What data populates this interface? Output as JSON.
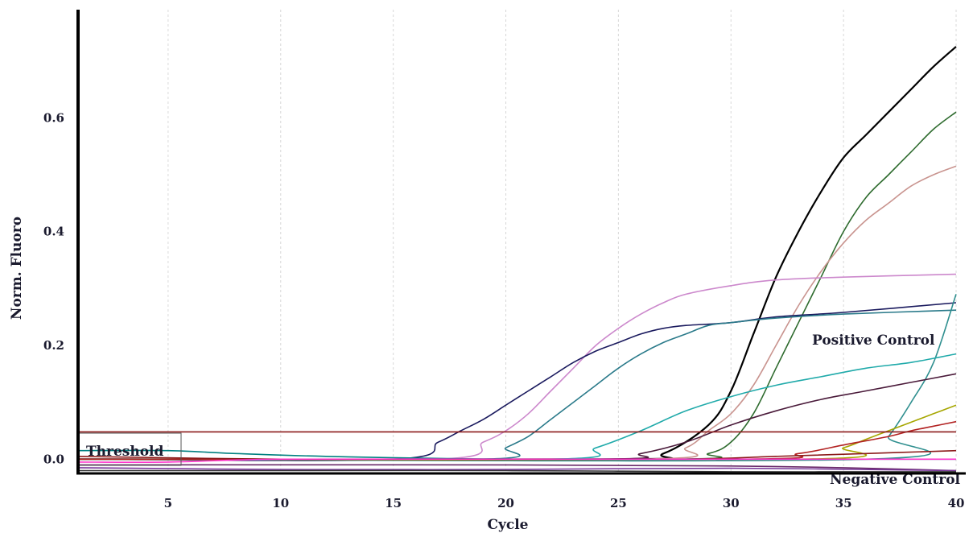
{
  "chart_data": {
    "type": "line",
    "xlabel": "Cycle",
    "ylabel": "Norm. Fluoro",
    "xlim": [
      1,
      40
    ],
    "ylim": [
      -0.025,
      0.79
    ],
    "x_ticks": [
      5,
      10,
      15,
      20,
      25,
      30,
      35,
      40
    ],
    "y_ticks": [
      0.0,
      0.2,
      0.4,
      0.6
    ],
    "x_tick_labels": [
      "5",
      "10",
      "15",
      "20",
      "25",
      "30",
      "35",
      "40"
    ],
    "y_tick_labels": [
      "0.0",
      "0.2",
      "0.4",
      "0.6"
    ],
    "grid": "vertical dashed",
    "threshold": 0.048,
    "threshold_color": "#8b1a1a",
    "annotations": {
      "threshold": "Threshold",
      "positive": "Positive Control",
      "negative": "Negative Control"
    },
    "series": [
      {
        "color": "#000000",
        "points": [
          [
            1,
            0.0
          ],
          [
            25,
            0.0
          ],
          [
            27,
            0.01
          ],
          [
            29,
            0.06
          ],
          [
            30,
            0.12
          ],
          [
            31,
            0.22
          ],
          [
            32,
            0.32
          ],
          [
            33,
            0.4
          ],
          [
            34,
            0.47
          ],
          [
            35,
            0.53
          ],
          [
            36,
            0.57
          ],
          [
            37,
            0.61
          ],
          [
            38,
            0.65
          ],
          [
            39,
            0.69
          ],
          [
            40,
            0.725
          ]
        ]
      },
      {
        "color": "#2e6b2e",
        "points": [
          [
            1,
            0.0
          ],
          [
            27,
            0.0
          ],
          [
            29,
            0.01
          ],
          [
            30,
            0.03
          ],
          [
            31,
            0.08
          ],
          [
            32,
            0.16
          ],
          [
            33,
            0.24
          ],
          [
            34,
            0.32
          ],
          [
            35,
            0.4
          ],
          [
            36,
            0.46
          ],
          [
            37,
            0.5
          ],
          [
            38,
            0.54
          ],
          [
            39,
            0.58
          ],
          [
            40,
            0.61
          ]
        ]
      },
      {
        "color": "#c9948f",
        "points": [
          [
            1,
            0.0
          ],
          [
            26,
            0.0
          ],
          [
            28,
            0.02
          ],
          [
            29,
            0.05
          ],
          [
            30,
            0.08
          ],
          [
            31,
            0.13
          ],
          [
            32,
            0.2
          ],
          [
            33,
            0.27
          ],
          [
            34,
            0.33
          ],
          [
            35,
            0.38
          ],
          [
            36,
            0.42
          ],
          [
            37,
            0.45
          ],
          [
            38,
            0.48
          ],
          [
            39,
            0.5
          ],
          [
            40,
            0.515
          ]
        ]
      },
      {
        "color": "#cc88cc",
        "points": [
          [
            1,
            0.0
          ],
          [
            17,
            0.0
          ],
          [
            19,
            0.03
          ],
          [
            20,
            0.05
          ],
          [
            21,
            0.08
          ],
          [
            22,
            0.12
          ],
          [
            23,
            0.16
          ],
          [
            24,
            0.2
          ],
          [
            25,
            0.23
          ],
          [
            26,
            0.255
          ],
          [
            27,
            0.275
          ],
          [
            28,
            0.29
          ],
          [
            30,
            0.305
          ],
          [
            32,
            0.315
          ],
          [
            35,
            0.32
          ],
          [
            40,
            0.325
          ]
        ]
      },
      {
        "color": "#1a1a5e",
        "points": [
          [
            1,
            0.0
          ],
          [
            15,
            0.0
          ],
          [
            17,
            0.03
          ],
          [
            18,
            0.05
          ],
          [
            19,
            0.07
          ],
          [
            20,
            0.095
          ],
          [
            21,
            0.12
          ],
          [
            22,
            0.145
          ],
          [
            23,
            0.17
          ],
          [
            24,
            0.19
          ],
          [
            25,
            0.205
          ],
          [
            26,
            0.22
          ],
          [
            27,
            0.23
          ],
          [
            28,
            0.235
          ],
          [
            30,
            0.24
          ],
          [
            32,
            0.25
          ],
          [
            35,
            0.258
          ],
          [
            40,
            0.275
          ]
        ]
      },
      {
        "color": "#2a7a8a",
        "points": [
          [
            1,
            0.0
          ],
          [
            19,
            0.0
          ],
          [
            20,
            0.02
          ],
          [
            21,
            0.04
          ],
          [
            22,
            0.07
          ],
          [
            23,
            0.1
          ],
          [
            24,
            0.13
          ],
          [
            25,
            0.16
          ],
          [
            26,
            0.185
          ],
          [
            27,
            0.205
          ],
          [
            28,
            0.22
          ],
          [
            29,
            0.235
          ],
          [
            30,
            0.24
          ],
          [
            32,
            0.248
          ],
          [
            35,
            0.255
          ],
          [
            40,
            0.262
          ]
        ]
      },
      {
        "color": "#2f8f8f",
        "points": [
          [
            1,
            0.0
          ],
          [
            36,
            0.0
          ],
          [
            37,
            0.04
          ],
          [
            38,
            0.1
          ],
          [
            39,
            0.17
          ],
          [
            40,
            0.29
          ]
        ]
      },
      {
        "color": "#20aaaa",
        "points": [
          [
            1,
            0.0
          ],
          [
            22,
            0.0
          ],
          [
            24,
            0.02
          ],
          [
            26,
            0.05
          ],
          [
            28,
            0.085
          ],
          [
            30,
            0.11
          ],
          [
            32,
            0.13
          ],
          [
            34,
            0.145
          ],
          [
            36,
            0.16
          ],
          [
            38,
            0.17
          ],
          [
            40,
            0.185
          ]
        ]
      },
      {
        "color": "#4a1a3a",
        "points": [
          [
            1,
            0.0
          ],
          [
            24,
            0.0
          ],
          [
            26,
            0.01
          ],
          [
            28,
            0.03
          ],
          [
            30,
            0.06
          ],
          [
            32,
            0.085
          ],
          [
            34,
            0.105
          ],
          [
            36,
            0.12
          ],
          [
            38,
            0.135
          ],
          [
            40,
            0.15
          ]
        ]
      },
      {
        "color": "#a6a600",
        "points": [
          [
            1,
            0.0
          ],
          [
            33,
            0.0
          ],
          [
            35,
            0.02
          ],
          [
            36,
            0.035
          ],
          [
            37,
            0.05
          ],
          [
            38,
            0.065
          ],
          [
            39,
            0.08
          ],
          [
            40,
            0.095
          ]
        ]
      },
      {
        "color": "#b22222",
        "points": [
          [
            1,
            0.0
          ],
          [
            30,
            0.0
          ],
          [
            33,
            0.01
          ],
          [
            35,
            0.025
          ],
          [
            37,
            0.04
          ],
          [
            38,
            0.05
          ],
          [
            39,
            0.058
          ],
          [
            40,
            0.066
          ]
        ]
      },
      {
        "color": "#8b1a1a",
        "points": [
          [
            1,
            0.005
          ],
          [
            10,
            0.0
          ],
          [
            20,
            0.0
          ],
          [
            28,
            0.0
          ],
          [
            32,
            0.005
          ],
          [
            36,
            0.01
          ],
          [
            40,
            0.015
          ]
        ]
      },
      {
        "color": "#008080",
        "points": [
          [
            1,
            0.015
          ],
          [
            5,
            0.015
          ],
          [
            8,
            0.01
          ],
          [
            12,
            0.005
          ],
          [
            20,
            0.0
          ],
          [
            30,
            0.0
          ],
          [
            40,
            0.0
          ]
        ]
      },
      {
        "color": "#ff33cc",
        "points": [
          [
            1,
            -0.005
          ],
          [
            5,
            -0.005
          ],
          [
            10,
            0.0
          ],
          [
            20,
            0.0
          ],
          [
            30,
            0.0
          ],
          [
            40,
            0.0
          ]
        ]
      },
      {
        "color": "#6a2a6a",
        "points": [
          [
            1,
            -0.01
          ],
          [
            20,
            -0.01
          ],
          [
            30,
            -0.012
          ],
          [
            35,
            -0.015
          ],
          [
            40,
            -0.02
          ]
        ]
      },
      {
        "color": "#7a3a9a",
        "points": [
          [
            1,
            -0.015
          ],
          [
            10,
            -0.018
          ],
          [
            20,
            -0.018
          ],
          [
            30,
            -0.016
          ],
          [
            40,
            -0.02
          ]
        ]
      },
      {
        "color": "#333333",
        "points": [
          [
            1,
            -0.02
          ],
          [
            10,
            -0.02
          ],
          [
            20,
            -0.02
          ],
          [
            30,
            -0.022
          ],
          [
            40,
            -0.022
          ]
        ]
      }
    ]
  }
}
